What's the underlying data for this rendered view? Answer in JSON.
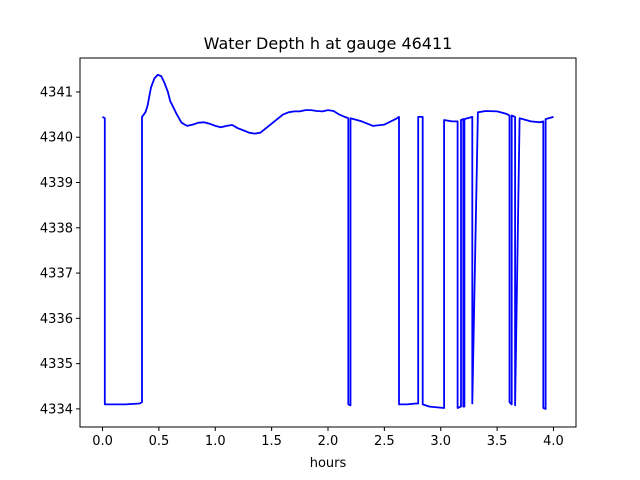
{
  "chart_data": {
    "type": "line",
    "title": "Water Depth h at gauge 46411",
    "xlabel": "hours",
    "ylabel": "",
    "xlim": [
      -0.2,
      4.2
    ],
    "ylim": [
      4333.6,
      4341.75
    ],
    "xticks": [
      0.0,
      0.5,
      1.0,
      1.5,
      2.0,
      2.5,
      3.0,
      3.5,
      4.0
    ],
    "xtick_labels": [
      "0.0",
      "0.5",
      "1.0",
      "1.5",
      "2.0",
      "2.5",
      "3.0",
      "3.5",
      "4.0"
    ],
    "yticks": [
      4334,
      4335,
      4336,
      4337,
      4338,
      4339,
      4340,
      4341
    ],
    "ytick_labels": [
      "4334",
      "4335",
      "4336",
      "4337",
      "4338",
      "4339",
      "4340",
      "4341"
    ],
    "grid": false,
    "color": "#0000ff",
    "series": [
      {
        "x": [
          0.0,
          0.02,
          0.02,
          0.1,
          0.2,
          0.33,
          0.35,
          0.35,
          0.38,
          0.4,
          0.43,
          0.46,
          0.49,
          0.52,
          0.55,
          0.58,
          0.6,
          0.63,
          0.66,
          0.7,
          0.75,
          0.8,
          0.85,
          0.9,
          0.95,
          1.0,
          1.05,
          1.1,
          1.15,
          1.2,
          1.25,
          1.3,
          1.35,
          1.4,
          1.45,
          1.5,
          1.55,
          1.6,
          1.65,
          1.7,
          1.75,
          1.8,
          1.85,
          1.9,
          1.95,
          2.0,
          2.05,
          2.1,
          2.15,
          2.18,
          2.18,
          2.2,
          2.2,
          2.3,
          2.4,
          2.5,
          2.6,
          2.63,
          2.63,
          2.7,
          2.78,
          2.8,
          2.8,
          2.84,
          2.84,
          2.9,
          3.03,
          3.03,
          3.1,
          3.15,
          3.15,
          3.18,
          3.18,
          3.2,
          3.2,
          3.21,
          3.21,
          3.28,
          3.28,
          3.33,
          3.4,
          3.5,
          3.58,
          3.61,
          3.61,
          3.63,
          3.63,
          3.66,
          3.66,
          3.7,
          3.8,
          3.88,
          3.91,
          3.91,
          3.93,
          3.93,
          4.0
        ],
        "y": [
          4340.45,
          4340.42,
          4334.1,
          4334.1,
          4334.1,
          4334.12,
          4334.15,
          4340.45,
          4340.55,
          4340.7,
          4341.1,
          4341.3,
          4341.38,
          4341.35,
          4341.2,
          4341.0,
          4340.8,
          4340.65,
          4340.5,
          4340.32,
          4340.25,
          4340.28,
          4340.32,
          4340.33,
          4340.3,
          4340.25,
          4340.22,
          4340.25,
          4340.27,
          4340.2,
          4340.15,
          4340.1,
          4340.08,
          4340.1,
          4340.2,
          4340.3,
          4340.4,
          4340.5,
          4340.55,
          4340.57,
          4340.57,
          4340.6,
          4340.6,
          4340.58,
          4340.57,
          4340.6,
          4340.58,
          4340.5,
          4340.45,
          4340.42,
          4334.1,
          4334.08,
          4340.42,
          4340.35,
          4340.25,
          4340.28,
          4340.4,
          4340.45,
          4334.1,
          4334.1,
          4334.12,
          4334.12,
          4340.45,
          4340.45,
          4334.1,
          4334.05,
          4334.02,
          4340.38,
          4340.35,
          4340.35,
          4334.02,
          4334.05,
          4340.38,
          4340.4,
          4334.05,
          4334.05,
          4340.4,
          4340.45,
          4334.12,
          4340.55,
          4340.58,
          4340.57,
          4340.52,
          4340.48,
          4334.15,
          4334.1,
          4340.48,
          4340.45,
          4334.08,
          4340.42,
          4340.35,
          4340.33,
          4340.35,
          4334.02,
          4334.0,
          4340.4,
          4340.45
        ]
      }
    ]
  }
}
